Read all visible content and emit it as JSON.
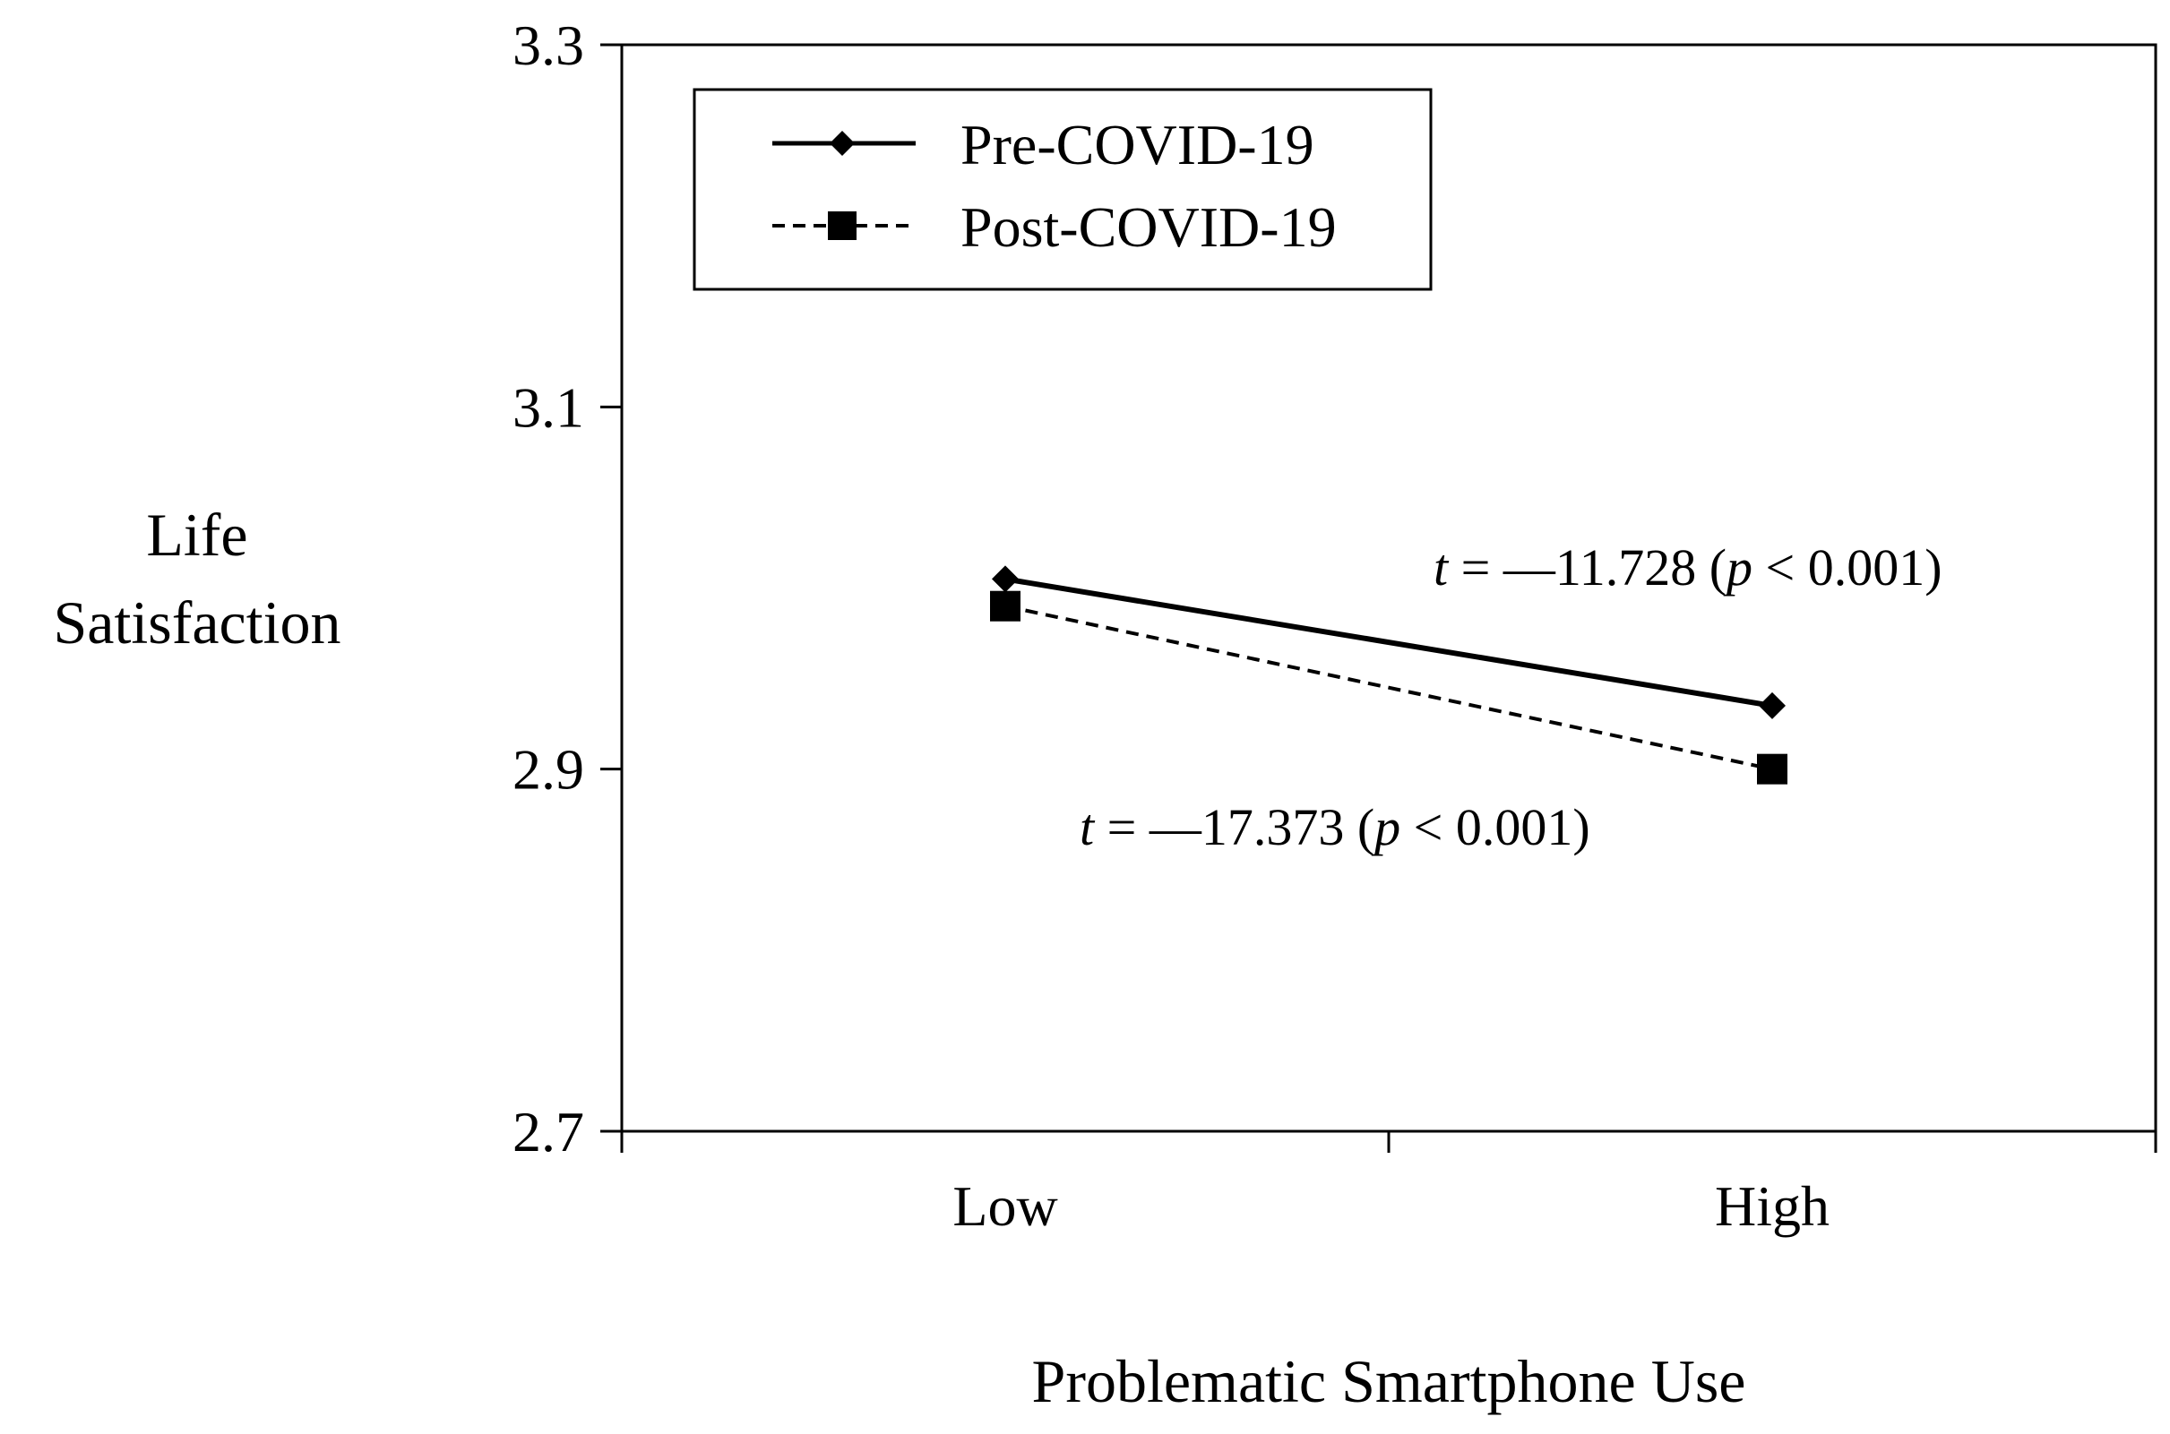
{
  "chart_data": {
    "type": "line",
    "categories": [
      "Low",
      "High"
    ],
    "series": [
      {
        "name": "Pre-COVID-19",
        "values": [
          3.005,
          2.935
        ],
        "line_style": "solid",
        "marker": "diamond"
      },
      {
        "name": "Post-COVID-19",
        "values": [
          2.99,
          2.9
        ],
        "line_style": "dashed",
        "marker": "square"
      }
    ],
    "title": "",
    "xlabel": "Problematic Smartphone Use",
    "ylabel_lines": [
      "Life",
      "Satisfaction"
    ],
    "ylim": [
      2.7,
      3.3
    ],
    "yticks": [
      "2.7",
      "2.9",
      "3.1",
      "3.3"
    ],
    "grid": false,
    "legend_position": "top-left",
    "annotations": [
      {
        "t_symbol": "t",
        "eq": " = ",
        "dash": "—",
        "value": "11.728",
        "paren_open": " (",
        "p_symbol": "p",
        "rest": " < 0.001)"
      },
      {
        "t_symbol": "t",
        "eq": " = ",
        "dash": "—",
        "value": "17.373",
        "paren_open": " (",
        "p_symbol": "p",
        "rest": " < 0.001)"
      }
    ],
    "color": "#000000"
  }
}
